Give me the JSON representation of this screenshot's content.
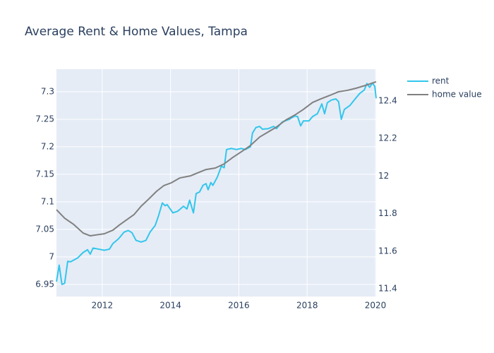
{
  "chart_data": {
    "type": "line",
    "title": "Average Rent & Home Values, Tampa",
    "xlim": [
      2010.66,
      2020.02
    ],
    "xticks": [
      2012,
      2014,
      2016,
      2018,
      2020
    ],
    "ylim": [
      6.928,
      7.341
    ],
    "yticks": [
      6.95,
      7,
      7.05,
      7.1,
      7.15,
      7.2,
      7.25,
      7.3
    ],
    "y2lim": [
      11.359,
      12.569
    ],
    "y2ticks": [
      11.4,
      11.6,
      11.8,
      12,
      12.2,
      12.4
    ],
    "grid": true,
    "legend": "right",
    "series": [
      {
        "name": "rent",
        "color": "#33c6ec",
        "x": [
          2010.66,
          2010.74,
          2010.82,
          2010.9,
          2010.99,
          2011.07,
          2011.28,
          2011.44,
          2011.57,
          2011.65,
          2011.73,
          2011.9,
          2012.06,
          2012.21,
          2012.31,
          2012.48,
          2012.64,
          2012.76,
          2012.87,
          2012.99,
          2013.14,
          2013.28,
          2013.4,
          2013.55,
          2013.65,
          2013.76,
          2013.84,
          2013.9,
          2014.07,
          2014.21,
          2014.38,
          2014.48,
          2014.56,
          2014.67,
          2014.75,
          2014.85,
          2014.95,
          2015.04,
          2015.1,
          2015.18,
          2015.24,
          2015.37,
          2015.49,
          2015.57,
          2015.64,
          2015.78,
          2015.93,
          2016.07,
          2016.19,
          2016.34,
          2016.4,
          2016.5,
          2016.61,
          2016.69,
          2016.86,
          2017.02,
          2017.1,
          2017.27,
          2017.48,
          2017.64,
          2017.72,
          2017.81,
          2017.89,
          2018.05,
          2018.16,
          2018.3,
          2018.43,
          2018.51,
          2018.59,
          2018.71,
          2018.84,
          2018.92,
          2019.0,
          2019.09,
          2019.25,
          2019.38,
          2019.54,
          2019.67,
          2019.75,
          2019.83,
          2019.91,
          2019.98,
          2020.02
        ],
        "values": [
          6.955,
          6.985,
          6.95,
          6.952,
          6.992,
          6.991,
          6.998,
          7.008,
          7.013,
          7.005,
          7.016,
          7.014,
          7.012,
          7.014,
          7.024,
          7.033,
          7.045,
          7.048,
          7.044,
          7.03,
          7.027,
          7.03,
          7.045,
          7.057,
          7.075,
          7.098,
          7.093,
          7.095,
          7.08,
          7.083,
          7.092,
          7.087,
          7.103,
          7.08,
          7.115,
          7.118,
          7.13,
          7.133,
          7.122,
          7.135,
          7.13,
          7.145,
          7.165,
          7.162,
          7.195,
          7.197,
          7.195,
          7.197,
          7.195,
          7.2,
          7.225,
          7.235,
          7.237,
          7.232,
          7.233,
          7.237,
          7.233,
          7.245,
          7.25,
          7.256,
          7.255,
          7.238,
          7.247,
          7.247,
          7.255,
          7.26,
          7.278,
          7.26,
          7.28,
          7.285,
          7.287,
          7.282,
          7.25,
          7.268,
          7.275,
          7.285,
          7.297,
          7.303,
          7.315,
          7.308,
          7.316,
          7.31,
          7.288
        ]
      },
      {
        "name": "home value",
        "color": "#808080",
        "axis": "y2",
        "x": [
          2010.66,
          2010.9,
          2011.17,
          2011.44,
          2011.65,
          2011.9,
          2012.06,
          2012.31,
          2012.52,
          2012.72,
          2012.93,
          2013.14,
          2013.34,
          2013.59,
          2013.8,
          2014.02,
          2014.27,
          2014.58,
          2014.79,
          2015.04,
          2015.31,
          2015.57,
          2015.82,
          2016.07,
          2016.34,
          2016.61,
          2016.86,
          2017.1,
          2017.37,
          2017.64,
          2017.89,
          2018.16,
          2018.4,
          2018.67,
          2018.92,
          2019.17,
          2019.44,
          2019.71,
          2020.02
        ],
        "values": [
          11.821,
          11.776,
          11.742,
          11.697,
          11.682,
          11.689,
          11.693,
          11.712,
          11.742,
          11.768,
          11.795,
          11.84,
          11.874,
          11.919,
          11.949,
          11.964,
          11.99,
          12.001,
          12.017,
          12.035,
          12.043,
          12.065,
          12.099,
          12.129,
          12.163,
          12.208,
          12.235,
          12.261,
          12.298,
          12.325,
          12.355,
          12.392,
          12.411,
          12.43,
          12.449,
          12.456,
          12.468,
          12.483,
          12.502
        ]
      }
    ]
  }
}
